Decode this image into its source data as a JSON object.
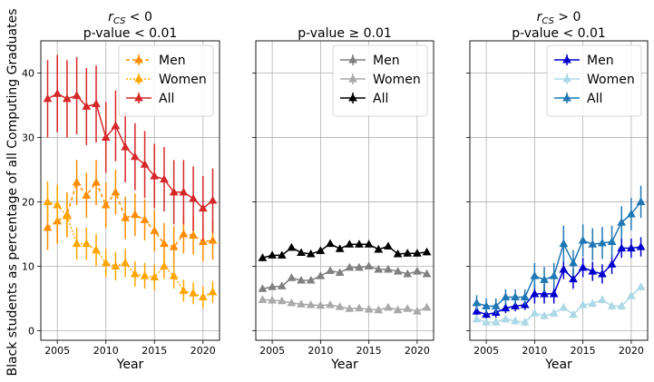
{
  "figure": {
    "ylabel": "Black students as percentage of all Computing Graduates"
  },
  "chart_data": [
    {
      "type": "line",
      "title_line1": "rCS < 0",
      "title_line2": "p-value < 0.01",
      "xlabel": "Year",
      "ylabel": "Black students as percentage of all Computing Graduates",
      "xlim": [
        2003.3,
        2021.7
      ],
      "ylim": [
        -1.5,
        45
      ],
      "xticks": [
        2005,
        2010,
        2015,
        2020
      ],
      "yticks": [
        0,
        10,
        20,
        30,
        40
      ],
      "grid": true,
      "legend": "top-right",
      "x": [
        2004,
        2005,
        2006,
        2007,
        2008,
        2009,
        2010,
        2011,
        2012,
        2013,
        2014,
        2015,
        2016,
        2017,
        2018,
        2019,
        2020,
        2021
      ],
      "series": [
        {
          "name": "Men",
          "color": "#ff8c00",
          "dash": "4,3",
          "values": [
            16.0,
            17.0,
            18.0,
            23.0,
            21.0,
            23.0,
            19.5,
            21.5,
            17.5,
            18.0,
            17.2,
            15.5,
            13.5,
            13.0,
            15.0,
            14.8,
            13.8,
            14.0
          ],
          "err": [
            3.5,
            3.5,
            3.5,
            3.5,
            3.5,
            3.5,
            3.5,
            3.5,
            3.3,
            3.3,
            3.2,
            3.2,
            3.2,
            3.2,
            3.0,
            3.0,
            3.0,
            3.0
          ]
        },
        {
          "name": "Women",
          "color": "#ffa500",
          "dash": "2,2",
          "values": [
            20.0,
            19.5,
            17.8,
            13.5,
            13.5,
            12.5,
            10.5,
            10.0,
            10.5,
            8.8,
            8.5,
            8.3,
            10.0,
            8.5,
            6.2,
            5.8,
            5.2,
            6.0
          ],
          "err": [
            3.2,
            3.2,
            3.2,
            2.5,
            2.5,
            2.5,
            2.2,
            2.2,
            2.2,
            2.0,
            2.0,
            2.0,
            2.0,
            2.0,
            1.7,
            1.7,
            1.7,
            1.7
          ]
        },
        {
          "name": "All",
          "color": "#d62728",
          "dash": "",
          "values": [
            36.0,
            36.8,
            36.0,
            36.5,
            34.8,
            35.2,
            30.0,
            31.8,
            28.5,
            27.0,
            25.8,
            24.0,
            23.5,
            21.5,
            21.5,
            20.5,
            19.0,
            20.2
          ],
          "err": [
            6.0,
            6.0,
            6.0,
            6.0,
            6.0,
            6.0,
            5.5,
            5.5,
            5.5,
            5.2,
            5.2,
            5.0,
            5.0,
            5.0,
            5.0,
            5.0,
            5.0,
            5.0
          ]
        }
      ]
    },
    {
      "type": "line",
      "title_line1": "p-value ≥ 0.01",
      "title_line2": "",
      "xlabel": "Year",
      "ylabel": "",
      "xlim": [
        2003.3,
        2021.7
      ],
      "ylim": [
        -1.5,
        45
      ],
      "xticks": [
        2005,
        2010,
        2015,
        2020
      ],
      "yticks": [
        0,
        10,
        20,
        30,
        40
      ],
      "grid": true,
      "legend": "top-right",
      "x": [
        2004,
        2005,
        2006,
        2007,
        2008,
        2009,
        2010,
        2011,
        2012,
        2013,
        2014,
        2015,
        2016,
        2017,
        2018,
        2019,
        2020,
        2021
      ],
      "series": [
        {
          "name": "Men",
          "color": "#808080",
          "dash": "",
          "values": [
            6.5,
            6.8,
            6.9,
            8.2,
            7.8,
            7.8,
            8.5,
            9.3,
            9.0,
            9.8,
            9.8,
            10.0,
            9.5,
            9.5,
            9.2,
            8.8,
            9.2,
            8.8
          ],
          "err": [
            0.4,
            0.4,
            0.4,
            0.4,
            0.4,
            0.4,
            0.4,
            0.4,
            0.4,
            0.4,
            0.4,
            0.4,
            0.4,
            0.4,
            0.4,
            0.4,
            0.4,
            0.4
          ]
        },
        {
          "name": "Women",
          "color": "#a9a9a9",
          "dash": "",
          "values": [
            4.8,
            4.7,
            4.6,
            4.3,
            4.1,
            4.0,
            3.9,
            4.0,
            3.7,
            3.4,
            3.5,
            3.3,
            3.2,
            3.6,
            3.2,
            3.4,
            3.0,
            3.6
          ],
          "err": [
            0.3,
            0.3,
            0.3,
            0.3,
            0.3,
            0.3,
            0.3,
            0.3,
            0.3,
            0.3,
            0.3,
            0.3,
            0.3,
            0.3,
            0.3,
            0.3,
            0.3,
            0.3
          ]
        },
        {
          "name": "All",
          "color": "#000000",
          "dash": "",
          "values": [
            11.3,
            11.7,
            11.7,
            12.9,
            12.1,
            11.9,
            12.4,
            13.5,
            12.7,
            13.4,
            13.4,
            13.4,
            12.6,
            13.1,
            11.9,
            12.0,
            12.0,
            12.2
          ],
          "err": [
            0.5,
            0.5,
            0.5,
            0.5,
            0.5,
            0.5,
            0.5,
            0.5,
            0.5,
            0.5,
            0.5,
            0.5,
            0.5,
            0.5,
            0.5,
            0.5,
            0.5,
            0.5
          ]
        }
      ]
    },
    {
      "type": "line",
      "title_line1": "rCS > 0",
      "title_line2": "p-value < 0.01",
      "xlabel": "Year",
      "ylabel": "",
      "xlim": [
        2003.3,
        2021.7
      ],
      "ylim": [
        -1.5,
        45
      ],
      "xticks": [
        2005,
        2010,
        2015,
        2020
      ],
      "yticks": [
        0,
        10,
        20,
        30,
        40
      ],
      "grid": true,
      "legend": "top-right",
      "x": [
        2004,
        2005,
        2006,
        2007,
        2008,
        2009,
        2010,
        2011,
        2012,
        2013,
        2014,
        2015,
        2016,
        2017,
        2018,
        2019,
        2020,
        2021
      ],
      "series": [
        {
          "name": "Men",
          "color": "#0000cd",
          "dash": "",
          "values": [
            3.0,
            2.5,
            2.8,
            3.5,
            3.8,
            4.0,
            5.7,
            5.7,
            5.7,
            9.5,
            8.0,
            9.8,
            9.2,
            8.8,
            10.3,
            12.8,
            12.8,
            13.0
          ],
          "err": [
            0.8,
            0.8,
            0.8,
            0.8,
            0.8,
            0.8,
            1.5,
            1.5,
            1.5,
            1.5,
            1.5,
            1.5,
            1.5,
            1.5,
            1.5,
            1.5,
            1.5,
            1.5
          ]
        },
        {
          "name": "Women",
          "color": "#add8e6",
          "dash": "",
          "values": [
            1.8,
            1.3,
            1.3,
            1.8,
            1.5,
            1.3,
            2.7,
            2.3,
            2.7,
            3.6,
            2.5,
            4.0,
            4.2,
            4.8,
            3.8,
            3.8,
            5.4,
            6.8
          ],
          "err": [
            0.6,
            0.6,
            0.6,
            0.6,
            0.6,
            0.6,
            0.6,
            0.6,
            0.6,
            0.6,
            0.6,
            0.6,
            0.6,
            0.6,
            0.6,
            0.6,
            0.6,
            0.6
          ]
        },
        {
          "name": "All",
          "color": "#1f77b4",
          "dash": "",
          "values": [
            4.3,
            3.8,
            3.8,
            5.2,
            5.2,
            5.2,
            8.5,
            7.9,
            8.5,
            13.5,
            10.5,
            14.0,
            13.4,
            13.6,
            13.8,
            16.8,
            18.1,
            20.0
          ],
          "err": [
            1.2,
            1.2,
            1.2,
            1.2,
            1.2,
            1.2,
            2.0,
            2.0,
            2.0,
            2.8,
            2.0,
            2.5,
            2.5,
            2.5,
            2.5,
            2.5,
            2.5,
            2.5
          ]
        }
      ]
    }
  ]
}
